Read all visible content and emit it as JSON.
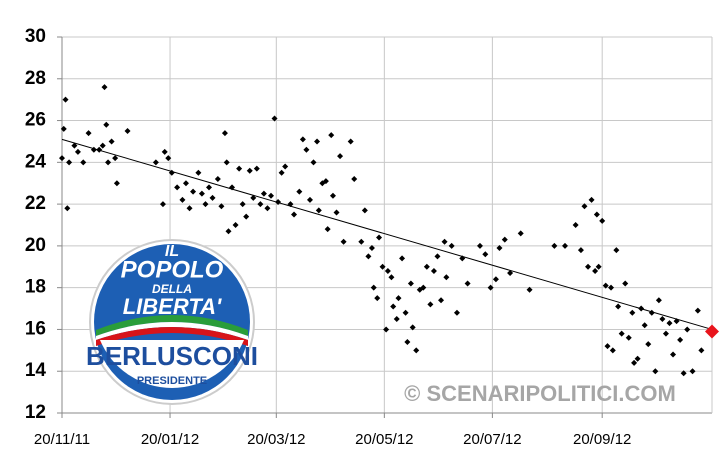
{
  "chart_data": {
    "type": "scatter",
    "xlim": [
      "2011-11-20",
      "2012-11-21"
    ],
    "xticks": [
      {
        "value": "2011-11-20",
        "label": "20/11/11"
      },
      {
        "value": "2012-01-20",
        "label": "20/01/12"
      },
      {
        "value": "2012-03-20",
        "label": "20/03/12"
      },
      {
        "value": "2012-05-20",
        "label": "20/05/12"
      },
      {
        "value": "2012-07-20",
        "label": "20/07/12"
      },
      {
        "value": "2012-09-20",
        "label": "20/09/12"
      }
    ],
    "ylim": [
      12,
      30
    ],
    "yticks": [
      12,
      14,
      16,
      18,
      20,
      22,
      24,
      26,
      28,
      30
    ],
    "grid": true,
    "points": {
      "color": "#000000",
      "x": [
        "2011-11-20",
        "2011-11-21",
        "2011-11-22",
        "2011-11-23",
        "2011-11-24",
        "2011-11-27",
        "2011-11-29",
        "2011-12-02",
        "2011-12-05",
        "2011-12-08",
        "2011-12-11",
        "2011-12-13",
        "2011-12-14",
        "2011-12-15",
        "2011-12-16",
        "2011-12-18",
        "2011-12-20",
        "2011-12-21",
        "2011-12-27",
        "2012-01-12",
        "2012-01-16",
        "2012-01-17",
        "2012-01-19",
        "2012-01-21",
        "2012-01-24",
        "2012-01-27",
        "2012-01-29",
        "2012-01-31",
        "2012-02-02",
        "2012-02-05",
        "2012-02-07",
        "2012-02-09",
        "2012-02-11",
        "2012-02-13",
        "2012-02-16",
        "2012-02-18",
        "2012-02-20",
        "2012-02-21",
        "2012-02-22",
        "2012-02-24",
        "2012-02-26",
        "2012-02-28",
        "2012-03-01",
        "2012-03-03",
        "2012-03-05",
        "2012-03-07",
        "2012-03-09",
        "2012-03-11",
        "2012-03-13",
        "2012-03-15",
        "2012-03-17",
        "2012-03-19",
        "2012-03-21",
        "2012-03-23",
        "2012-03-25",
        "2012-03-28",
        "2012-03-30",
        "2012-04-02",
        "2012-04-04",
        "2012-04-06",
        "2012-04-08",
        "2012-04-10",
        "2012-04-12",
        "2012-04-13",
        "2012-04-15",
        "2012-04-17",
        "2012-04-18",
        "2012-04-20",
        "2012-04-21",
        "2012-04-23",
        "2012-04-25",
        "2012-04-27",
        "2012-05-01",
        "2012-05-03",
        "2012-05-07",
        "2012-05-09",
        "2012-05-11",
        "2012-05-13",
        "2012-05-14",
        "2012-05-16",
        "2012-05-17",
        "2012-05-19",
        "2012-05-21",
        "2012-05-22",
        "2012-05-24",
        "2012-05-25",
        "2012-05-27",
        "2012-05-28",
        "2012-05-30",
        "2012-06-01",
        "2012-06-02",
        "2012-06-04",
        "2012-06-05",
        "2012-06-07",
        "2012-06-09",
        "2012-06-11",
        "2012-06-13",
        "2012-06-15",
        "2012-06-17",
        "2012-06-19",
        "2012-06-21",
        "2012-06-23",
        "2012-06-24",
        "2012-06-27",
        "2012-06-30",
        "2012-07-03",
        "2012-07-06",
        "2012-07-13",
        "2012-07-16",
        "2012-07-19",
        "2012-07-22",
        "2012-07-24",
        "2012-07-27",
        "2012-07-30",
        "2012-08-05",
        "2012-08-10",
        "2012-08-24",
        "2012-08-30",
        "2012-09-05",
        "2012-09-08",
        "2012-09-10",
        "2012-09-12",
        "2012-09-14",
        "2012-09-16",
        "2012-09-17",
        "2012-09-18",
        "2012-09-20",
        "2012-09-22",
        "2012-09-23",
        "2012-09-25",
        "2012-09-26",
        "2012-09-28",
        "2012-09-29",
        "2012-10-01",
        "2012-10-03",
        "2012-10-05",
        "2012-10-07",
        "2012-10-08",
        "2012-10-10",
        "2012-10-12",
        "2012-10-14",
        "2012-10-16",
        "2012-10-18",
        "2012-10-20",
        "2012-10-22",
        "2012-10-24",
        "2012-10-26",
        "2012-10-28",
        "2012-10-30",
        "2012-11-01",
        "2012-11-03",
        "2012-11-05",
        "2012-11-07",
        "2012-11-10",
        "2012-11-13",
        "2012-11-15"
      ],
      "values": [
        24.2,
        25.6,
        27.0,
        21.8,
        24.0,
        24.8,
        24.5,
        24.0,
        25.4,
        24.6,
        24.6,
        24.8,
        27.6,
        25.8,
        24.0,
        25.0,
        24.2,
        23.0,
        25.5,
        24.0,
        22.0,
        24.5,
        24.2,
        23.5,
        22.8,
        22.2,
        23.0,
        21.8,
        22.6,
        23.5,
        22.5,
        22.0,
        22.8,
        22.3,
        23.2,
        21.9,
        25.4,
        24.0,
        20.7,
        22.8,
        21.0,
        23.7,
        22.0,
        21.4,
        23.6,
        22.3,
        23.7,
        22.0,
        22.5,
        21.8,
        22.4,
        26.1,
        22.1,
        23.5,
        23.8,
        22.0,
        21.5,
        22.6,
        25.1,
        24.6,
        22.2,
        24.0,
        25.0,
        21.7,
        23.0,
        23.1,
        20.8,
        25.3,
        22.4,
        21.6,
        24.3,
        20.2,
        25.0,
        23.2,
        20.2,
        21.7,
        19.5,
        19.9,
        18.0,
        17.5,
        20.4,
        19.0,
        16.0,
        18.8,
        18.5,
        17.1,
        16.5,
        17.5,
        19.4,
        16.8,
        15.4,
        18.2,
        16.1,
        15.0,
        17.9,
        18.0,
        19.0,
        17.2,
        18.8,
        19.5,
        17.4,
        20.2,
        18.5,
        20.0,
        16.8,
        19.4,
        18.2,
        20.0,
        19.6,
        18.0,
        18.4,
        19.9,
        20.3,
        18.7,
        20.6,
        17.9,
        20.0,
        20.0,
        21.0,
        19.8,
        21.9,
        19.0,
        22.2,
        18.8,
        21.5,
        19.0,
        21.2,
        18.1,
        15.2,
        18.0,
        15.0,
        19.8,
        17.1,
        15.8,
        18.2,
        15.6,
        16.8,
        14.4,
        14.6,
        17.0,
        16.2,
        15.3,
        16.8,
        14.0,
        17.4,
        16.5,
        15.8,
        16.3,
        14.8,
        16.4,
        15.5,
        13.9,
        16.0,
        14.0,
        16.9,
        15.0
      ]
    },
    "trend": {
      "color": "#000000",
      "x": [
        "2011-11-20",
        "2012-11-21"
      ],
      "values": [
        25.1,
        16.0
      ]
    },
    "highlight": {
      "color": "#e8141c",
      "x": "2012-11-21",
      "value": 15.9
    },
    "watermark": "© SCENARIPOLITICI.COM",
    "logo": {
      "line1": "IL",
      "line2": "POPOLO",
      "line3": "DELLA",
      "line4": "LIBERTA'",
      "name": "BERLUSCONI",
      "subtitle": "PRESIDENTE"
    }
  }
}
